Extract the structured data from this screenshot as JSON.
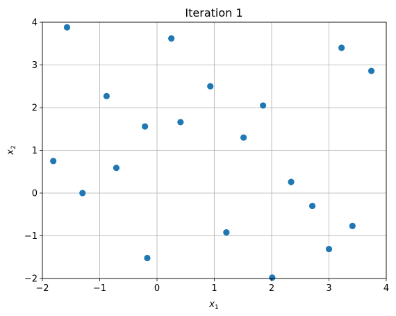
{
  "chart_data": {
    "type": "scatter",
    "title": "Iteration 1",
    "xlabel": {
      "base": "x",
      "sub": "1"
    },
    "ylabel": {
      "base": "x",
      "sub": "2"
    },
    "xlim": [
      -2,
      4
    ],
    "ylim": [
      -2,
      4
    ],
    "xticks": [
      -2,
      -1,
      0,
      1,
      2,
      3,
      4
    ],
    "yticks": [
      -2,
      -1,
      0,
      1,
      2,
      3,
      4
    ],
    "xtick_labels": [
      "−2",
      "−1",
      "0",
      "1",
      "2",
      "3",
      "4"
    ],
    "ytick_labels": [
      "−2",
      "−1",
      "0",
      "1",
      "2",
      "3",
      "4"
    ],
    "grid": true,
    "marker_color": "#1f77b4",
    "grid_color": "#b0b0b0",
    "points": [
      {
        "x": -1.57,
        "y": 3.88
      },
      {
        "x": 0.25,
        "y": 3.62
      },
      {
        "x": 3.22,
        "y": 3.4
      },
      {
        "x": 3.74,
        "y": 2.86
      },
      {
        "x": -0.88,
        "y": 2.27
      },
      {
        "x": 0.93,
        "y": 2.5
      },
      {
        "x": 1.85,
        "y": 2.05
      },
      {
        "x": -0.21,
        "y": 1.56
      },
      {
        "x": 0.41,
        "y": 1.66
      },
      {
        "x": 1.51,
        "y": 1.3
      },
      {
        "x": -1.81,
        "y": 0.75
      },
      {
        "x": -0.71,
        "y": 0.59
      },
      {
        "x": -1.3,
        "y": 0.0
      },
      {
        "x": 2.34,
        "y": 0.26
      },
      {
        "x": 2.71,
        "y": -0.3
      },
      {
        "x": 1.21,
        "y": -0.92
      },
      {
        "x": 3.41,
        "y": -0.77
      },
      {
        "x": 3.0,
        "y": -1.31
      },
      {
        "x": -0.17,
        "y": -1.52
      },
      {
        "x": 2.01,
        "y": -1.98
      }
    ]
  }
}
